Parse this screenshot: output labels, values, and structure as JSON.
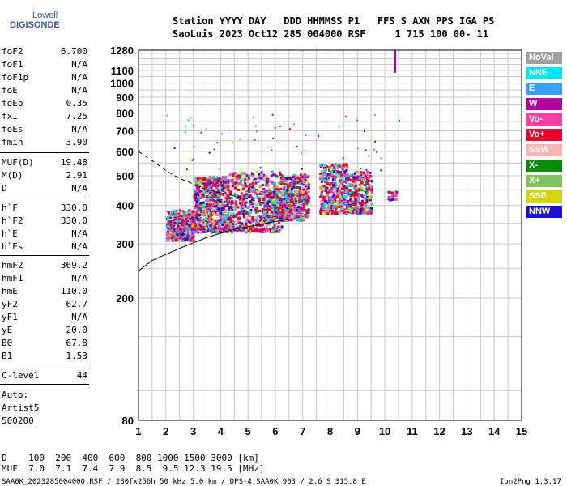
{
  "logo": {
    "line1": "Lowell",
    "line2": "DIGISONDE"
  },
  "header": {
    "row1": "Station YYYY DAY   DDD HHMMSS P1   FFS S AXN PPS IGA PS",
    "row2": "SaoLuis 2023 Oct12 285 004000 RSF     1 715 100 00- 11"
  },
  "params": [
    {
      "name": "foF2",
      "value": "6.700"
    },
    {
      "name": "foF1",
      "value": "N/A"
    },
    {
      "name": "foF1p",
      "value": "N/A"
    },
    {
      "name": "foE",
      "value": "N/A"
    },
    {
      "name": "foEp",
      "value": "0.35"
    },
    {
      "name": "fxI",
      "value": "7.25"
    },
    {
      "name": "foEs",
      "value": "N/A"
    },
    {
      "name": "fmin",
      "value": "3.90"
    },
    {
      "name": "MUF(D)",
      "value": "19.48"
    },
    {
      "name": "M(D)",
      "value": "2.91"
    },
    {
      "name": "D",
      "value": "N/A"
    },
    {
      "name": "h`F",
      "value": "330.0"
    },
    {
      "name": "h`F2",
      "value": "330.0"
    },
    {
      "name": "h`E",
      "value": "N/A"
    },
    {
      "name": "h`Es",
      "value": "N/A"
    },
    {
      "name": "hmF2",
      "value": "369.2"
    },
    {
      "name": "hmF1",
      "value": "N/A"
    },
    {
      "name": "hmE",
      "value": "110.0"
    },
    {
      "name": "yF2",
      "value": "62.7"
    },
    {
      "name": "yF1",
      "value": "N/A"
    },
    {
      "name": "yE",
      "value": "20.0"
    },
    {
      "name": "B0",
      "value": "67.8"
    },
    {
      "name": "B1",
      "value": "1.53"
    },
    {
      "name": "C-level",
      "value": "44"
    }
  ],
  "autoscale": {
    "label": "Auto:",
    "program": "Artist5",
    "version": "500200"
  },
  "legend": [
    {
      "label": "NoVal",
      "color": "#a0a0a0"
    },
    {
      "label": "NNE",
      "color": "#00e5f5"
    },
    {
      "label": "E",
      "color": "#3aa0ff"
    },
    {
      "label": "W",
      "color": "#b0009a"
    },
    {
      "label": "Vo-",
      "color": "#ff40a0"
    },
    {
      "label": "Vo+",
      "color": "#e8002a"
    },
    {
      "label": "SSW",
      "color": "#ffb4b4"
    },
    {
      "label": "X-",
      "color": "#0a8a0a"
    },
    {
      "label": "X+",
      "color": "#80c060"
    },
    {
      "label": "SSE",
      "color": "#d4d400"
    },
    {
      "label": "NNW",
      "color": "#1a10d0"
    }
  ],
  "chart_data": {
    "type": "scatter",
    "xlim": [
      1,
      15
    ],
    "ylim": [
      80,
      1280
    ],
    "y_scale": "log",
    "xticks": [
      "1",
      "2",
      "3",
      "4",
      "5",
      "6",
      "7",
      "8",
      "9",
      "10",
      "11",
      "12",
      "13",
      "14",
      "15"
    ],
    "yticks": [
      "80",
      "200",
      "300",
      "400",
      "500",
      "600",
      "700",
      "800",
      "900",
      "1000",
      "1100",
      "1280"
    ],
    "grid": true,
    "clusters": [
      {
        "x": [
          2.0,
          3.0
        ],
        "y": [
          310,
          390
        ],
        "n": 450
      },
      {
        "x": [
          3.0,
          4.3
        ],
        "y": [
          330,
          500
        ],
        "n": 700
      },
      {
        "x": [
          4.3,
          6.2
        ],
        "y": [
          330,
          520
        ],
        "n": 600
      },
      {
        "x": [
          5.5,
          7.0
        ],
        "y": [
          360,
          450
        ],
        "n": 350
      },
      {
        "x": [
          6.2,
          7.2
        ],
        "y": [
          370,
          510
        ],
        "n": 350
      },
      {
        "x": [
          7.6,
          8.6
        ],
        "y": [
          380,
          550
        ],
        "n": 400
      },
      {
        "x": [
          8.6,
          9.5
        ],
        "y": [
          380,
          520
        ],
        "n": 280
      },
      {
        "x": [
          10.1,
          10.4
        ],
        "y": [
          420,
          450
        ],
        "n": 25
      }
    ],
    "vertical_trace": {
      "x": 10.35,
      "y": [
        1100,
        1280
      ]
    },
    "profile_solid": {
      "x": [
        1,
        1.5,
        2.5,
        3.5,
        4.5,
        5.5,
        6.5
      ],
      "y": [
        245,
        265,
        290,
        315,
        335,
        348,
        362
      ]
    },
    "profile_dashed": {
      "x": [
        1,
        1.5,
        2,
        2.5,
        3,
        3.5,
        4,
        4.5,
        5,
        6,
        6.5
      ],
      "y": [
        600,
        560,
        520,
        490,
        470,
        450,
        440,
        430,
        420,
        400,
        390
      ]
    }
  },
  "footer": {
    "d_row": "D    100  200  400  600  800 1000 1500 3000 [km]",
    "muf_row": "MUF  7.0  7.1  7.4  7.9  8.5  9.5 12.3 19.5 [MHz]",
    "file_line": "SAA0K_2023285004000.RSF / 280fx256h 50 kHz 5.0 km / DPS-4 SAA0K 903 / 2.6 S 315.8 E",
    "version": "Ion2Png 1.3.17"
  }
}
